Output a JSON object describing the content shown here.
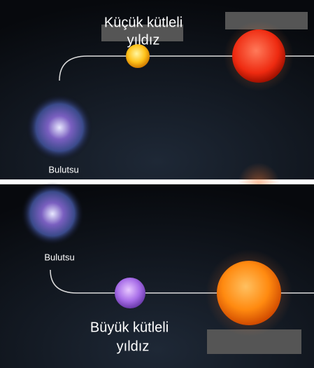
{
  "panels": [
    {
      "star_label": [
        "Küçük kütleli",
        "yıldız"
      ],
      "nebula_label": "Bulutsu"
    },
    {
      "star_label": [
        "Büyük kütleli",
        "yıldız"
      ],
      "nebula_label": "Bulutsu"
    }
  ]
}
